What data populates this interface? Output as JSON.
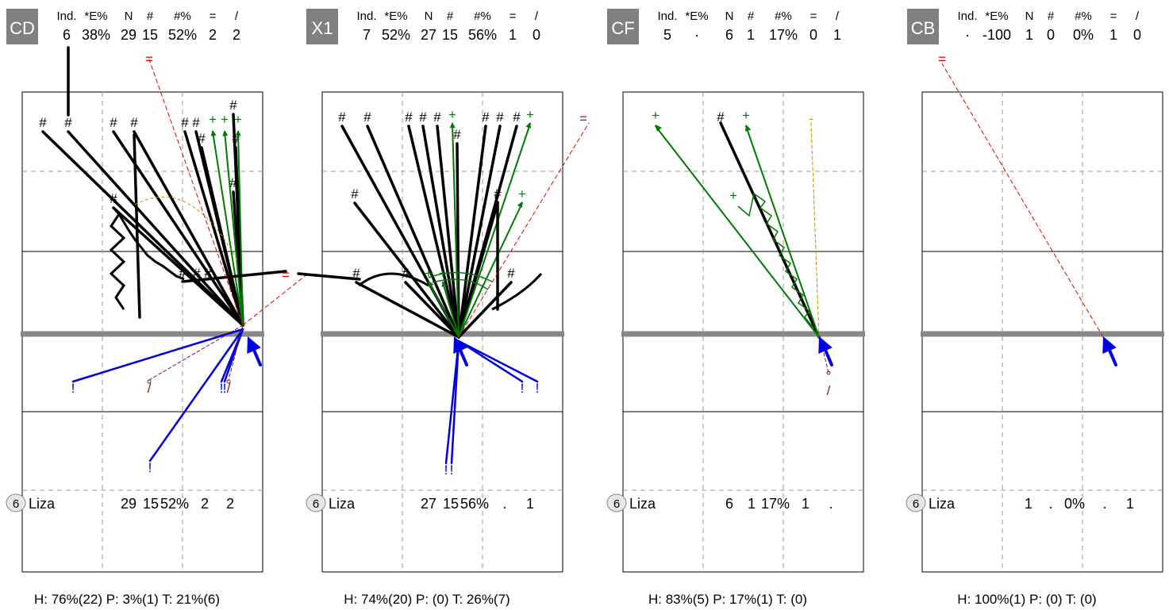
{
  "chart_data": [
    {
      "type": "shot-chart",
      "badge": "CD",
      "stats_header": [
        "Ind.",
        "*E%",
        "N",
        "#",
        "#%",
        "=",
        "/"
      ],
      "stats_values": [
        "6",
        "38%",
        "29",
        "15",
        "52%",
        "2",
        "2"
      ],
      "player": {
        "number": "6",
        "name": "Liza",
        "values": [
          "29",
          "15",
          "52%",
          "2",
          "2"
        ]
      },
      "footer": "H: 76%(22)  P: 3%(1)  T: 21%(6)"
    },
    {
      "type": "shot-chart",
      "badge": "X1",
      "stats_header": [
        "Ind.",
        "*E%",
        "N",
        "#",
        "#%",
        "=",
        "/"
      ],
      "stats_values": [
        "7",
        "52%",
        "27",
        "15",
        "56%",
        "1",
        "0"
      ],
      "player": {
        "number": "6",
        "name": "Liza",
        "values": [
          "27",
          "15",
          "56%",
          ".",
          "1"
        ]
      },
      "footer": "H: 74%(20)  P: (0)  T: 26%(7)"
    },
    {
      "type": "shot-chart",
      "badge": "CF",
      "stats_header": [
        "Ind.",
        "*E%",
        "N",
        "#",
        "#%",
        "=",
        "/"
      ],
      "stats_values": [
        "5",
        "·",
        "6",
        "1",
        "17%",
        "0",
        "1"
      ],
      "player": {
        "number": "6",
        "name": "Liza",
        "values": [
          "6",
          "1",
          "17%",
          "1",
          "."
        ]
      },
      "footer": "H: 83%(5)  P: 17%(1)  T: (0)"
    },
    {
      "type": "shot-chart",
      "badge": "CB",
      "stats_header": [
        "Ind.",
        "*E%",
        "N",
        "#",
        "#%",
        "=",
        "/"
      ],
      "stats_values": [
        "·",
        "-100",
        "1",
        "0",
        "0%",
        "1",
        "0"
      ],
      "player": {
        "number": "6",
        "name": "Liza",
        "values": [
          "1",
          ".",
          "0%",
          ".",
          "1"
        ]
      },
      "footer": "H: 100%(1)  P: (0)  T: (0)"
    }
  ],
  "symbols": {
    "kill": "#",
    "positive": "+",
    "error": "=",
    "blocked": "/",
    "dig": "!",
    "neutral": "-"
  },
  "colors": {
    "kill": "#000000",
    "positive": "#007a00",
    "error": "#e00000",
    "dig": "#0000e0",
    "blocked": "#7a1a1a",
    "neutral": "#c89000",
    "net": "#888888",
    "badge": "#808080"
  }
}
